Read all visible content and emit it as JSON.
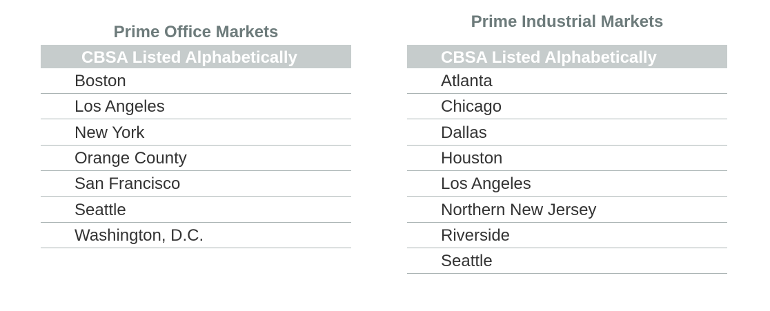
{
  "tables": [
    {
      "title": "Prime Office Markets",
      "header": "CBSA Listed Alphabetically",
      "rows": [
        "Boston",
        "Los Angeles",
        "New York",
        "Orange County",
        "San Francisco",
        "Seattle",
        "Washington, D.C."
      ]
    },
    {
      "title": "Prime Industrial Markets",
      "header": "CBSA Listed Alphabetically",
      "rows": [
        "Atlanta",
        "Chicago",
        "Dallas",
        "Houston",
        "Los Angeles",
        "Northern New Jersey",
        "Riverside",
        "Seattle"
      ]
    }
  ]
}
